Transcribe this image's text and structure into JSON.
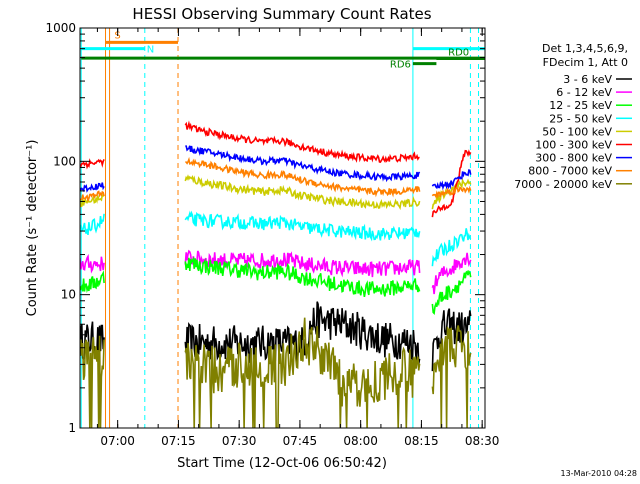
{
  "chart_data": {
    "type": "line",
    "title": "HESSI Observing Summary Count Rates",
    "xlabel": "Start Time (12-Oct-06 06:50:42)",
    "ylabel": "Count Rate (s⁻¹ detector⁻¹)",
    "yscale": "log",
    "xlim": [
      0,
      100
    ],
    "ylim": [
      1,
      1000
    ],
    "xunit": "minutes after 06:50:42",
    "x_ticks": [
      {
        "label": "07:00",
        "x": 9.3
      },
      {
        "label": "07:15",
        "x": 24.3
      },
      {
        "label": "07:30",
        "x": 39.3
      },
      {
        "label": "07:45",
        "x": 54.3
      },
      {
        "label": "08:00",
        "x": 69.3
      },
      {
        "label": "08:15",
        "x": 84.3
      },
      {
        "label": "08:30",
        "x": 99.3
      }
    ],
    "y_ticks": [
      {
        "label": "1",
        "y": 1
      },
      {
        "label": "10",
        "y": 10
      },
      {
        "label": "100",
        "y": 100
      },
      {
        "label": "1000",
        "y": 1000
      }
    ],
    "grid": false,
    "legend_header": [
      "Det 1,3,4,5,6,9,",
      "FDecim 1, Att 0"
    ],
    "legend_position": "right",
    "series": [
      {
        "name": "3 - 6 keV",
        "color": "#000000",
        "segments": [
          {
            "x": [
              0,
              3,
              6
            ],
            "y": [
              4.5,
              4.6,
              4.4
            ]
          },
          {
            "x": [
              26,
              40,
              55,
              58,
              65,
              75,
              82,
              84
            ],
            "y": [
              4.4,
              4.3,
              4.3,
              6.5,
              6.0,
              4.6,
              4.4,
              4.0
            ]
          },
          {
            "x": [
              87,
              89,
              92,
              95,
              96.5
            ],
            "y": [
              3.5,
              5.5,
              5.8,
              5.5,
              5.8
            ]
          }
        ]
      },
      {
        "name": "6 - 12 keV",
        "color": "#ff00ff",
        "segments": [
          {
            "x": [
              0,
              3,
              6
            ],
            "y": [
              17,
              17,
              17
            ]
          },
          {
            "x": [
              26,
              30,
              38,
              45,
              50,
              55,
              63,
              70,
              75,
              80,
              84
            ],
            "y": [
              19,
              18.5,
              18,
              18,
              18.5,
              17,
              16,
              15.5,
              15.5,
              16,
              16
            ]
          },
          {
            "x": [
              87,
              89,
              92,
              95,
              96.5
            ],
            "y": [
              11,
              14,
              16,
              19,
              19
            ]
          }
        ]
      },
      {
        "name": "12 - 25 keV",
        "color": "#00ff00",
        "segments": [
          {
            "x": [
              0,
              3,
              6
            ],
            "y": [
              11.5,
              12,
              13.5
            ]
          },
          {
            "x": [
              26,
              30,
              38,
              45,
              50,
              55,
              63,
              70,
              75,
              80,
              84
            ],
            "y": [
              17.5,
              16.5,
              15.5,
              14.5,
              15,
              13.5,
              12,
              11,
              11,
              11.5,
              12
            ]
          },
          {
            "x": [
              87,
              89,
              92,
              95,
              96.5
            ],
            "y": [
              7.5,
              9.5,
              11,
              13,
              14
            ]
          }
        ]
      },
      {
        "name": "25 - 50 keV",
        "color": "#00ffff",
        "segments": [
          {
            "x": [
              0,
              3,
              6
            ],
            "y": [
              30,
              32,
              37
            ]
          },
          {
            "x": [
              26,
              30,
              38,
              45,
              50,
              55,
              63,
              70,
              75,
              80,
              84
            ],
            "y": [
              37,
              36,
              35,
              34,
              35,
              32,
              30,
              29,
              28.5,
              29,
              30
            ]
          },
          {
            "x": [
              87,
              89,
              92,
              95,
              96.5
            ],
            "y": [
              18,
              21,
              24,
              28,
              29
            ]
          }
        ]
      },
      {
        "name": "50 - 100 keV",
        "color": "#cccc00",
        "segments": [
          {
            "x": [
              0,
              3,
              6
            ],
            "y": [
              49,
              51,
              54
            ]
          },
          {
            "x": [
              26,
              30,
              38,
              45,
              50,
              55,
              63,
              70,
              75,
              80,
              84
            ],
            "y": [
              75,
              70,
              63,
              59,
              61,
              55,
              50,
              48,
              47,
              48,
              50
            ]
          },
          {
            "x": [
              87,
              89,
              92,
              95,
              96.5
            ],
            "y": [
              45,
              55,
              63,
              69,
              70
            ]
          }
        ]
      },
      {
        "name": "100 - 300 keV",
        "color": "#ff0000",
        "segments": [
          {
            "x": [
              0,
              3,
              6
            ],
            "y": [
              95,
              97,
              100
            ]
          },
          {
            "x": [
              26,
              30,
              38,
              45,
              50,
              55,
              63,
              70,
              75,
              80,
              84
            ],
            "y": [
              185,
              170,
              150,
              140,
              142,
              128,
              112,
              106,
              104,
              106,
              110
            ]
          },
          {
            "x": [
              87,
              89,
              92,
              95,
              96.5
            ],
            "y": [
              40,
              44,
              50,
              118,
              116
            ]
          }
        ]
      },
      {
        "name": "300 - 800 keV",
        "color": "#0000ff",
        "segments": [
          {
            "x": [
              0,
              3,
              6
            ],
            "y": [
              62,
              64,
              67
            ]
          },
          {
            "x": [
              26,
              30,
              38,
              45,
              50,
              55,
              63,
              70,
              75,
              80,
              84
            ],
            "y": [
              125,
              120,
              108,
              100,
              102,
              92,
              82,
              78,
              76,
              77,
              79
            ]
          },
          {
            "x": [
              87,
              89,
              92,
              95,
              96.5
            ],
            "y": [
              63,
              66,
              69,
              82,
              82
            ]
          }
        ]
      },
      {
        "name": "800 - 7000 keV",
        "color": "#ff8000",
        "segments": [
          {
            "x": [
              0,
              3,
              6
            ],
            "y": [
              53,
              55,
              57
            ]
          },
          {
            "x": [
              26,
              30,
              38,
              45,
              50,
              55,
              63,
              70,
              75,
              80,
              84
            ],
            "y": [
              100,
              96,
              85,
              78,
              80,
              72,
              64,
              60,
              59,
              60,
              62
            ]
          },
          {
            "x": [
              87,
              89,
              92,
              95,
              96.5
            ],
            "y": [
              55,
              57,
              60,
              62,
              63
            ]
          }
        ]
      },
      {
        "name": "7000 - 20000 keV",
        "color": "#808000",
        "segments": [
          {
            "x": [
              0,
              3,
              6
            ],
            "y": [
              3.3,
              3.2,
              3.3
            ]
          },
          {
            "x": [
              26,
              35,
              40,
              50,
              55,
              60,
              65,
              70,
              75,
              80,
              84
            ],
            "y": [
              3.2,
              2.6,
              3.1,
              2.8,
              4.6,
              3.7,
              2.0,
              2.1,
              2.4,
              2.6,
              2.5
            ]
          },
          {
            "x": [
              87,
              89,
              92,
              95,
              96.5
            ],
            "y": [
              2.5,
              4.2,
              4.0,
              3.9,
              4.0
            ]
          }
        ]
      }
    ],
    "vertical_markers": [
      {
        "x": 0.3,
        "style": "solid",
        "color": "#00ffff"
      },
      {
        "x": 6.3,
        "style": "solid",
        "color": "#ff8000"
      },
      {
        "x": 7.3,
        "style": "solid",
        "color": "#ff8000"
      },
      {
        "x": 16.0,
        "style": "dashed",
        "color": "#00ffff"
      },
      {
        "x": 24.2,
        "style": "dashed",
        "color": "#ff8000"
      },
      {
        "x": 82.2,
        "style": "solid",
        "color": "#00ffff"
      },
      {
        "x": 96.4,
        "style": "dashed",
        "color": "#00ffff"
      },
      {
        "x": 98.4,
        "style": "dashed",
        "color": "#00ffff"
      }
    ],
    "flag_bars": [
      {
        "label": "S",
        "x0": 6.3,
        "x1": 24.2,
        "y": 780,
        "color": "#ff8000"
      },
      {
        "label": "N",
        "x0": 0.3,
        "x1": 16.0,
        "y": 700,
        "color": "#00ffff"
      },
      {
        "label": "",
        "x0": 82.2,
        "x1": 100,
        "y": 700,
        "color": "#00ffff"
      },
      {
        "label": "",
        "x0": 0.3,
        "x1": 100,
        "y": 595,
        "color": "#008000"
      },
      {
        "label": "RD0",
        "x0": 88.0,
        "x1": 100,
        "y": 590,
        "color": "#008000"
      },
      {
        "label": "RD6",
        "x0": 82.2,
        "x1": 88.0,
        "y": 540,
        "color": "#008000"
      }
    ]
  },
  "footer_date": "13-Mar-2010 04:28"
}
